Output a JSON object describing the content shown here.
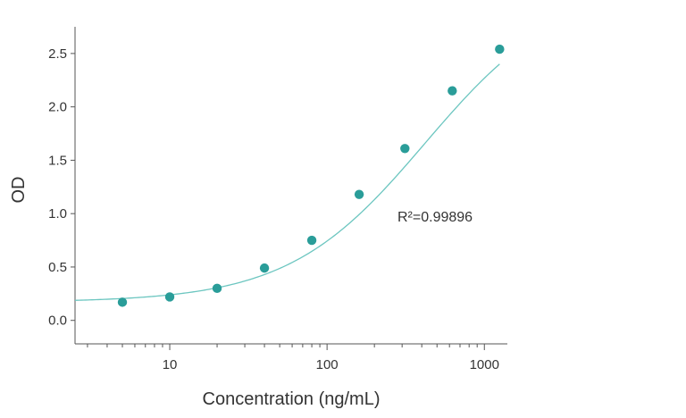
{
  "chart_data": {
    "type": "scatter",
    "xlabel": "Concentration (ng/mL)",
    "ylabel": "OD",
    "xscale": "log",
    "xlim": [
      2.5,
      1400
    ],
    "ylim": [
      -0.22,
      2.75
    ],
    "xticks": [
      {
        "value": 10,
        "label": "10"
      },
      {
        "value": 100,
        "label": "100"
      },
      {
        "value": 1000,
        "label": "1000"
      }
    ],
    "yticks": [
      {
        "value": 0.0,
        "label": "0.0"
      },
      {
        "value": 0.5,
        "label": "0.5"
      },
      {
        "value": 1.0,
        "label": "1.0"
      },
      {
        "value": 1.5,
        "label": "1.5"
      },
      {
        "value": 2.0,
        "label": "2.0"
      },
      {
        "value": 2.5,
        "label": "2.5"
      }
    ],
    "series": [
      {
        "x": [
          5,
          10,
          20,
          40,
          80,
          160,
          312.5,
          625,
          1250
        ],
        "y": [
          0.17,
          0.22,
          0.3,
          0.49,
          0.75,
          1.18,
          1.61,
          2.15,
          2.54
        ]
      }
    ],
    "fit": {
      "bottom": 0.17,
      "top": 3.15,
      "ec50": 420,
      "hill": 1.0
    },
    "annotation": "R²=0.99896",
    "grid": false,
    "colors": {
      "points": "#2a9d99",
      "curve": "#6cc6c0",
      "axis": "#555555"
    }
  }
}
